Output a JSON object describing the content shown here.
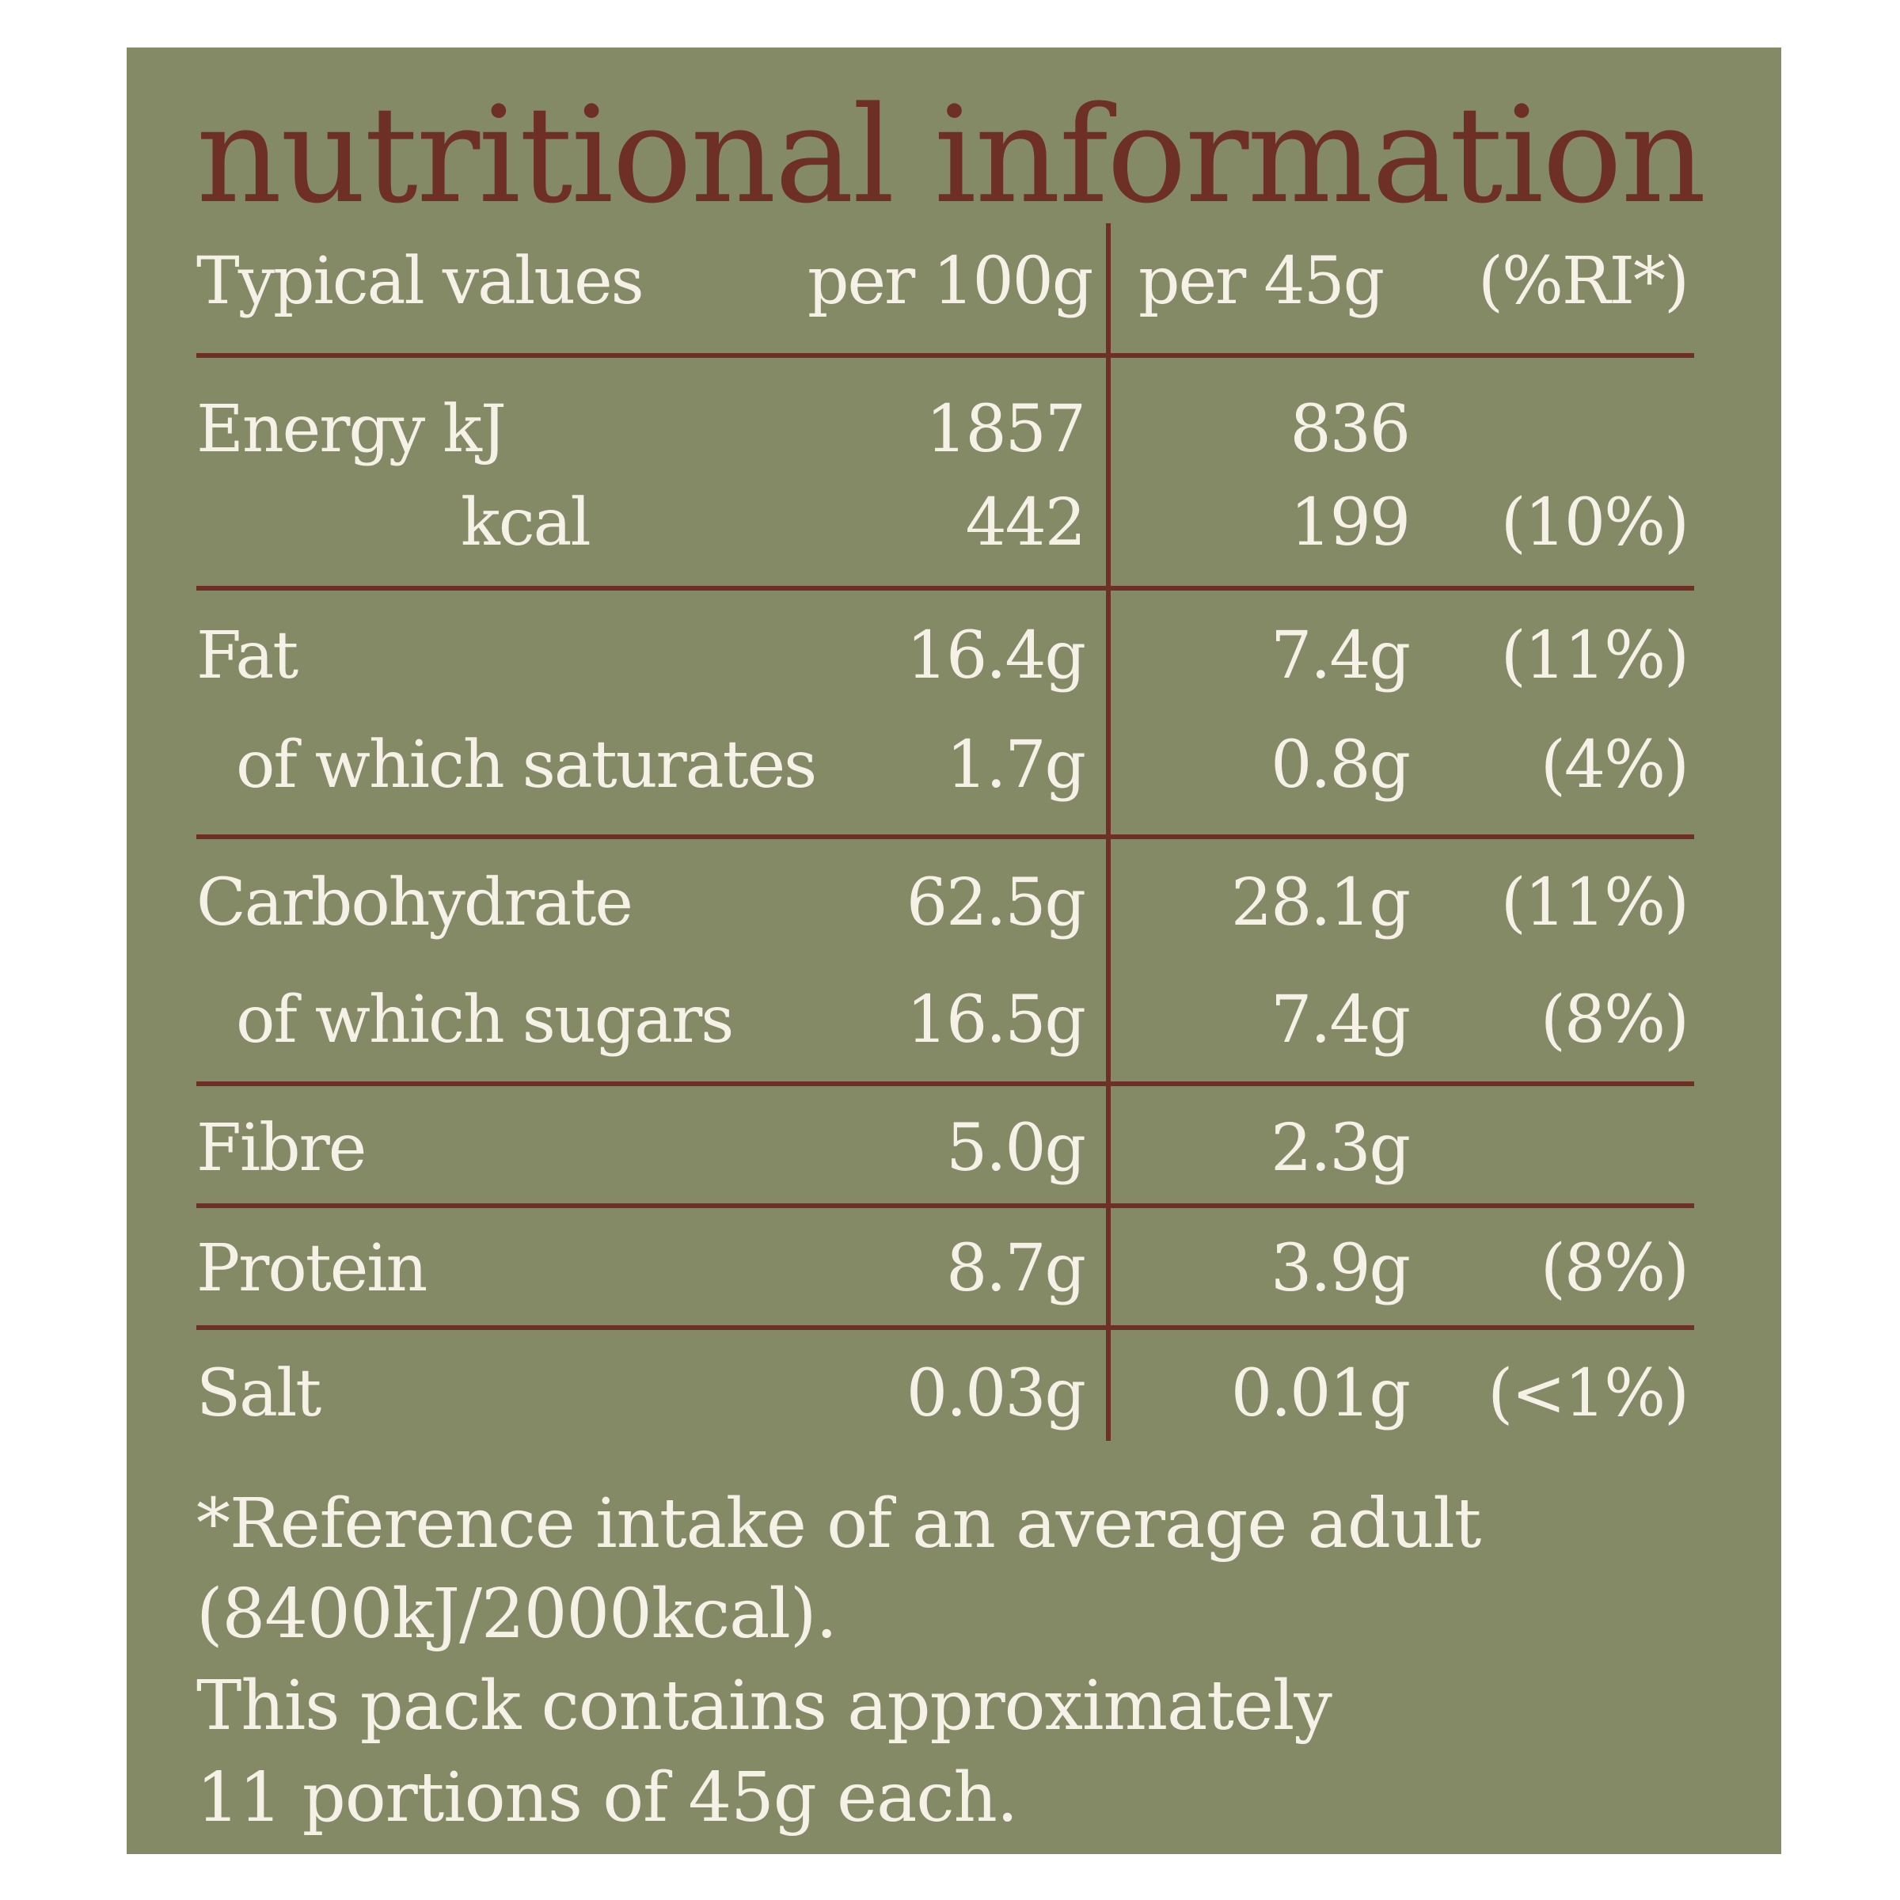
{
  "title": "nutritional information",
  "colors": {
    "panel": "#848a66",
    "accent": "#6e2f26",
    "text": "#f6f1e6"
  },
  "header": {
    "label": "Typical values",
    "per100": "per 100g",
    "per45": "per 45g",
    "ri": "(%RI*)"
  },
  "rows": [
    {
      "label": "Energy kJ",
      "per100": "1857",
      "per45": "836",
      "ri": ""
    },
    {
      "label": "kcal",
      "per100": "442",
      "per45": "199",
      "ri": "(10%)"
    },
    {
      "label": "Fat",
      "per100": "16.4g",
      "per45": "7.4g",
      "ri": "(11%)"
    },
    {
      "label": "of which saturates",
      "per100": "1.7g",
      "per45": "0.8g",
      "ri": "(4%)"
    },
    {
      "label": "Carbohydrate",
      "per100": "62.5g",
      "per45": "28.1g",
      "ri": "(11%)"
    },
    {
      "label": "of which sugars",
      "per100": "16.5g",
      "per45": "7.4g",
      "ri": "(8%)"
    },
    {
      "label": "Fibre",
      "per100": "5.0g",
      "per45": "2.3g",
      "ri": ""
    },
    {
      "label": "Protein",
      "per100": "8.7g",
      "per45": "3.9g",
      "ri": "(8%)"
    },
    {
      "label": "Salt",
      "per100": "0.03g",
      "per45": "0.01g",
      "ri": "(<1%)"
    }
  ],
  "footnote": {
    "line1": "*Reference intake of an average adult",
    "line2": "(8400kJ/2000kcal).",
    "line3": "This pack contains approximately",
    "line4": "11 portions of 45g each."
  }
}
